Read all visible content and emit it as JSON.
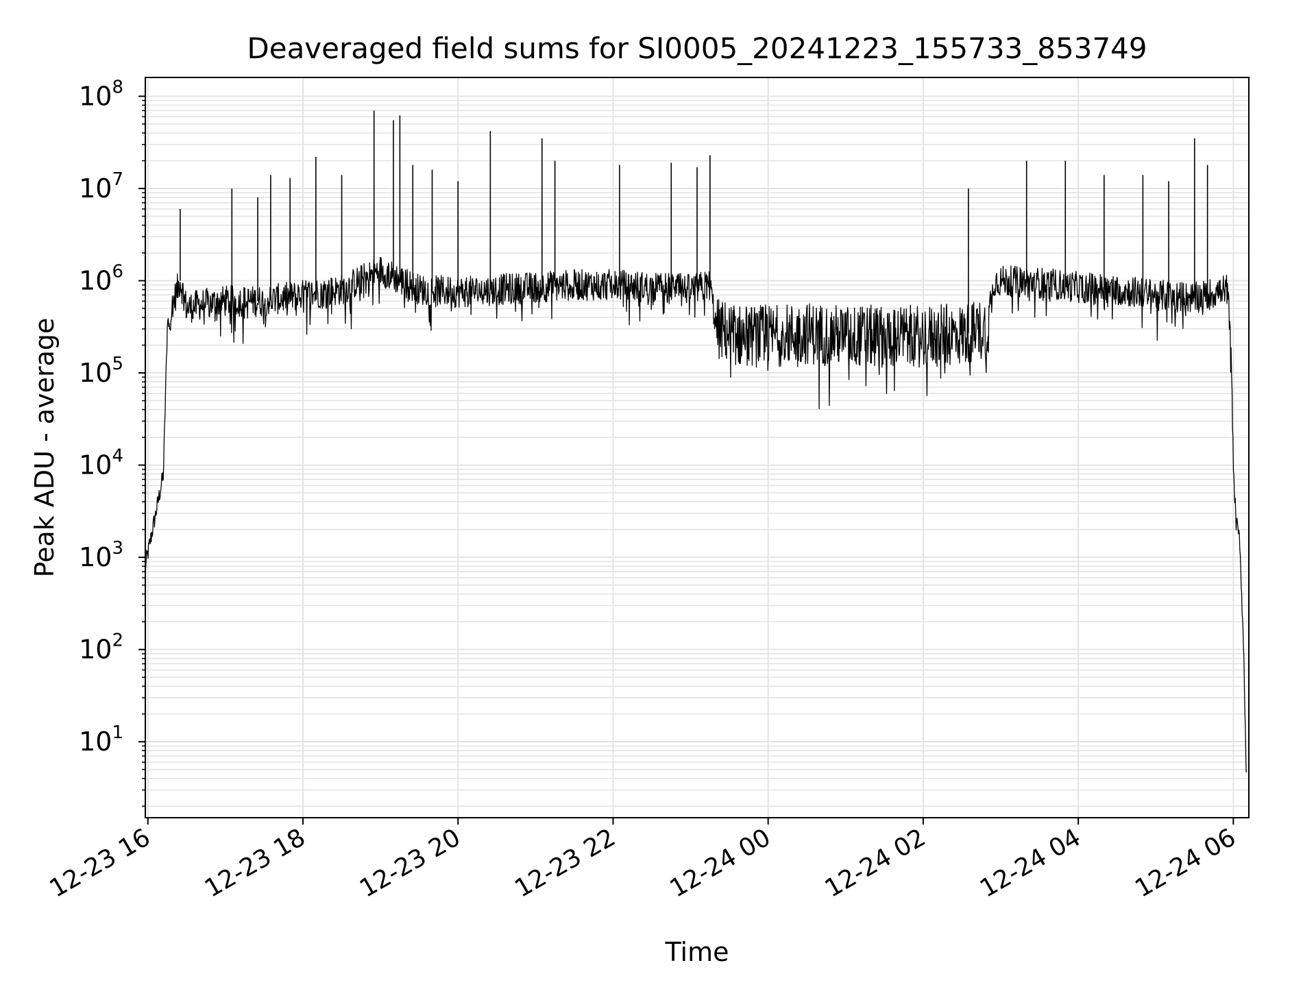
{
  "chart_data": {
    "type": "line",
    "title": "Deaveraged field sums for SI0005_20241223_155733_853749",
    "xlabel": "Time",
    "ylabel": "Peak ADU - average",
    "yscale": "log",
    "ylim": [
      1.5,
      160000000
    ],
    "xlim": [
      "2024-12-23 15:58",
      "2024-12-24 06:12"
    ],
    "grid": true,
    "x_ticks": [
      "12-23 16",
      "12-23 18",
      "12-23 20",
      "12-23 22",
      "12-24 00",
      "12-24 02",
      "12-24 04",
      "12-24 06"
    ],
    "y_tick_exponents": [
      "1",
      "2",
      "3",
      "4",
      "5",
      "6",
      "7",
      "8"
    ],
    "series": [
      {
        "color": "#000000",
        "x": [
          "2024-12-23 15:58",
          "2024-12-23 16:05",
          "2024-12-23 16:12",
          "2024-12-23 16:15",
          "2024-12-23 16:20",
          "2024-12-23 16:25",
          "2024-12-23 16:30",
          "2024-12-23 16:40",
          "2024-12-23 17:00",
          "2024-12-23 17:30",
          "2024-12-23 18:00",
          "2024-12-23 18:30",
          "2024-12-23 19:00",
          "2024-12-23 19:30",
          "2024-12-23 20:00",
          "2024-12-23 20:30",
          "2024-12-23 21:00",
          "2024-12-23 21:30",
          "2024-12-23 22:00",
          "2024-12-23 22:30",
          "2024-12-23 23:00",
          "2024-12-23 23:15",
          "2024-12-23 23:20",
          "2024-12-23 23:40",
          "2024-12-24 00:00",
          "2024-12-24 00:30",
          "2024-12-24 01:00",
          "2024-12-24 01:30",
          "2024-12-24 02:00",
          "2024-12-24 02:30",
          "2024-12-24 02:50",
          "2024-12-24 02:55",
          "2024-12-24 03:30",
          "2024-12-24 04:00",
          "2024-12-24 04:30",
          "2024-12-24 05:00",
          "2024-12-24 05:30",
          "2024-12-24 05:55",
          "2024-12-24 05:58",
          "2024-12-24 06:00",
          "2024-12-24 06:02",
          "2024-12-24 06:05",
          "2024-12-24 06:08",
          "2024-12-24 06:10"
        ],
        "y": [
          800,
          2500,
          8000,
          300000,
          600000,
          1000000,
          500000,
          550000,
          600000,
          600000,
          700000,
          800000,
          1300000,
          800000,
          750000,
          800000,
          850000,
          900000,
          900000,
          850000,
          800000,
          900000,
          300000,
          250000,
          250000,
          270000,
          250000,
          250000,
          250000,
          260000,
          300000,
          1000000,
          950000,
          850000,
          800000,
          700000,
          650000,
          800000,
          300000,
          10000,
          2500,
          1500,
          100,
          5
        ]
      }
    ],
    "spikes": [
      {
        "x": "2024-12-23 16:25",
        "y": 6000000
      },
      {
        "x": "2024-12-23 17:05",
        "y": 10000000
      },
      {
        "x": "2024-12-23 17:25",
        "y": 8000000
      },
      {
        "x": "2024-12-23 17:35",
        "y": 14000000
      },
      {
        "x": "2024-12-23 17:50",
        "y": 13000000
      },
      {
        "x": "2024-12-23 18:10",
        "y": 22000000
      },
      {
        "x": "2024-12-23 18:30",
        "y": 14000000
      },
      {
        "x": "2024-12-23 18:55",
        "y": 70000000
      },
      {
        "x": "2024-12-23 19:10",
        "y": 55000000
      },
      {
        "x": "2024-12-23 19:15",
        "y": 62000000
      },
      {
        "x": "2024-12-23 19:25",
        "y": 18000000
      },
      {
        "x": "2024-12-23 19:40",
        "y": 16000000
      },
      {
        "x": "2024-12-23 20:00",
        "y": 12000000
      },
      {
        "x": "2024-12-23 20:25",
        "y": 42000000
      },
      {
        "x": "2024-12-23 21:05",
        "y": 35000000
      },
      {
        "x": "2024-12-23 21:15",
        "y": 20000000
      },
      {
        "x": "2024-12-23 22:05",
        "y": 18000000
      },
      {
        "x": "2024-12-23 22:45",
        "y": 19000000
      },
      {
        "x": "2024-12-23 23:05",
        "y": 17000000
      },
      {
        "x": "2024-12-23 23:15",
        "y": 23000000
      },
      {
        "x": "2024-12-24 02:35",
        "y": 10000000
      },
      {
        "x": "2024-12-24 03:20",
        "y": 20000000
      },
      {
        "x": "2024-12-24 03:50",
        "y": 20000000
      },
      {
        "x": "2024-12-24 04:20",
        "y": 14000000
      },
      {
        "x": "2024-12-24 04:50",
        "y": 14000000
      },
      {
        "x": "2024-12-24 05:10",
        "y": 12000000
      },
      {
        "x": "2024-12-24 05:30",
        "y": 35000000
      },
      {
        "x": "2024-12-24 05:40",
        "y": 18000000
      }
    ]
  }
}
